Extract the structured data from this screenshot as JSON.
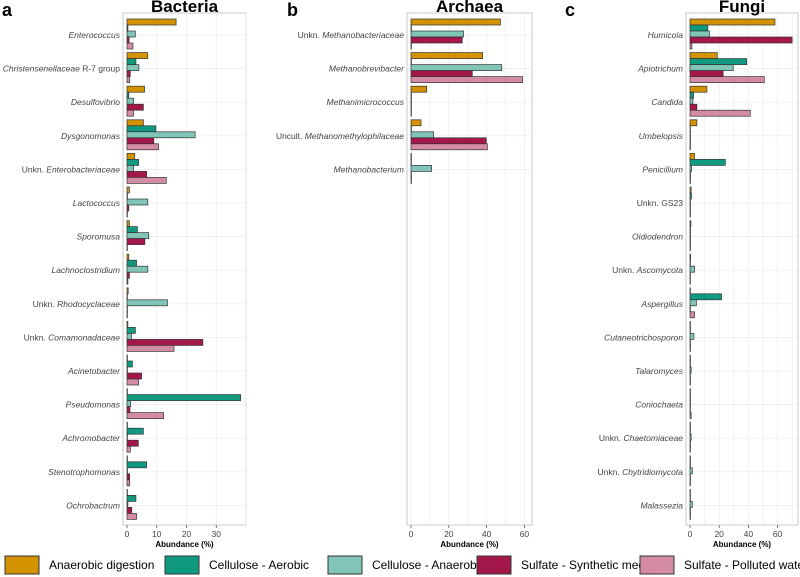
{
  "chart_data": {
    "type": "bar",
    "orientation": "horizontal",
    "legend_position": "bottom",
    "grid": true,
    "series_names": [
      "Anaerobic digestion",
      "Cellulose - Aerobic",
      "Cellulose - Anaerobic",
      "Sulfate - Synthetic medium",
      "Sulfate - Polluted water"
    ],
    "series_colors": [
      "#D39200",
      "#0F9A80",
      "#80C5B7",
      "#A4174A",
      "#D48CA4"
    ],
    "panels": [
      {
        "letter": "a",
        "title": "Bacteria",
        "xlabel": "Abundance (%)",
        "xlim": [
          0,
          40
        ],
        "ticks": [
          "0",
          "10",
          "20",
          "30"
        ],
        "categories": [
          {
            "italic": "Enterococcus",
            "plain": "",
            "suffix": ""
          },
          {
            "italic": "Christensenellaceae",
            "plain": "",
            "suffix": " R-7 group"
          },
          {
            "italic": "Desulfovibrio",
            "plain": "",
            "suffix": ""
          },
          {
            "italic": "Dysgonomonas",
            "plain": "",
            "suffix": ""
          },
          {
            "italic": "Enterobacteriaceae",
            "plain": "Unkn. ",
            "suffix": ""
          },
          {
            "italic": "Lactococcus",
            "plain": "",
            "suffix": ""
          },
          {
            "italic": "Sporomusa",
            "plain": "",
            "suffix": ""
          },
          {
            "italic": "Lachnoclostridium",
            "plain": "",
            "suffix": ""
          },
          {
            "italic": "Rhodocyclaceae",
            "plain": "Unkn. ",
            "suffix": ""
          },
          {
            "italic": "Comamonadaceae",
            "plain": "Unkn. ",
            "suffix": ""
          },
          {
            "italic": "Acinetobacter",
            "plain": "",
            "suffix": ""
          },
          {
            "italic": "Pseudomonas",
            "plain": "",
            "suffix": ""
          },
          {
            "italic": "Achromobacter",
            "plain": "",
            "suffix": ""
          },
          {
            "italic": "Stenotrophomonas",
            "plain": "",
            "suffix": ""
          },
          {
            "italic": "Ochrobactrum",
            "plain": "",
            "suffix": ""
          }
        ],
        "values": [
          [
            16.5,
            0.3,
            2.8,
            0.7,
            2.0
          ],
          [
            7.0,
            3.0,
            4.0,
            1.1,
            0.9
          ],
          [
            5.9,
            0.6,
            2.2,
            5.5,
            2.2
          ],
          [
            5.5,
            9.7,
            22.9,
            9.0,
            10.6
          ],
          [
            2.6,
            3.9,
            2.2,
            6.6,
            13.2
          ],
          [
            0.8,
            0,
            7.0,
            0.6,
            0.1
          ],
          [
            0.8,
            3.5,
            7.3,
            6.0,
            0.1
          ],
          [
            0.6,
            3.2,
            7.0,
            0.8,
            0.3
          ],
          [
            0.4,
            0,
            13.6,
            0,
            0
          ],
          [
            0.3,
            2.8,
            1.5,
            25.5,
            15.8
          ],
          [
            0,
            1.8,
            0,
            4.9,
            3.9
          ],
          [
            0,
            38.2,
            1.2,
            1.0,
            12.3
          ],
          [
            0,
            5.5,
            0,
            3.8,
            1.1
          ],
          [
            0,
            6.6,
            0,
            0.9,
            0.9
          ],
          [
            0,
            3.0,
            0.3,
            1.6,
            3.2
          ]
        ]
      },
      {
        "letter": "b",
        "title": "Archaea",
        "xlabel": "Abundance (%)",
        "xlim": [
          0,
          64
        ],
        "ticks": [
          "0",
          "20",
          "40",
          "60"
        ],
        "categories": [
          {
            "italic": "Methanobacteriaceae",
            "plain": "Unkn. ",
            "suffix": ""
          },
          {
            "italic": "Methanobrevibacter",
            "plain": "",
            "suffix": ""
          },
          {
            "italic": "Methanimicrococcus",
            "plain": "",
            "suffix": ""
          },
          {
            "italic": "Methanomethylophilaceae",
            "plain": "Uncult. ",
            "suffix": ""
          },
          {
            "italic": "Methanobacterium",
            "plain": "",
            "suffix": ""
          }
        ],
        "values": [
          [
            47.3,
            0,
            27.8,
            27.1,
            0
          ],
          [
            37.9,
            0,
            48.0,
            32.4,
            59.0
          ],
          [
            8.3,
            0,
            0,
            0,
            0
          ],
          [
            5.3,
            0,
            12.0,
            39.8,
            40.4
          ],
          [
            0,
            0,
            10.9,
            0,
            0
          ]
        ]
      },
      {
        "letter": "c",
        "title": "Fungi",
        "xlabel": "Abundance (%)",
        "xlim": [
          0,
          74
        ],
        "ticks": [
          "0",
          "20",
          "40",
          "60"
        ],
        "categories": [
          {
            "italic": "Humicola",
            "plain": "",
            "suffix": ""
          },
          {
            "italic": "Apiotrichum",
            "plain": "",
            "suffix": ""
          },
          {
            "italic": "Candida",
            "plain": "",
            "suffix": ""
          },
          {
            "italic": "Umbelopsis",
            "plain": "",
            "suffix": ""
          },
          {
            "italic": "Penicillium",
            "plain": "",
            "suffix": ""
          },
          {
            "italic": "",
            "plain": "Unkn. GS23",
            "suffix": ""
          },
          {
            "italic": "Oidiodendron",
            "plain": "",
            "suffix": ""
          },
          {
            "italic": "Ascomycota",
            "plain": "Unkn. ",
            "suffix": ""
          },
          {
            "italic": "Aspergillus",
            "plain": "",
            "suffix": ""
          },
          {
            "italic": "Cutaneotrichosporon",
            "plain": "",
            "suffix": ""
          },
          {
            "italic": "Talaromyces",
            "plain": "",
            "suffix": ""
          },
          {
            "italic": "Coniochaeta",
            "plain": "",
            "suffix": ""
          },
          {
            "italic": "Chaetomiaceae",
            "plain": "Unkn. ",
            "suffix": ""
          },
          {
            "italic": "Chytridiomycota",
            "plain": "Unkn. ",
            "suffix": ""
          },
          {
            "italic": "Malassezia",
            "plain": "",
            "suffix": ""
          }
        ],
        "values": [
          [
            58.2,
            12.2,
            13.3,
            70.0,
            1.3
          ],
          [
            18.7,
            38.9,
            29.6,
            22.7,
            50.9
          ],
          [
            11.6,
            2.4,
            2.0,
            4.7,
            41.3
          ],
          [
            4.7,
            0,
            0,
            0,
            0
          ],
          [
            3.1,
            24.2,
            1.1,
            0.3,
            0
          ],
          [
            0.8,
            1.0,
            0.2,
            0.2,
            0.2
          ],
          [
            0.6,
            0.3,
            0.3,
            0.3,
            0
          ],
          [
            0.4,
            0,
            3.1,
            0,
            0
          ],
          [
            0,
            21.6,
            4.4,
            0,
            3.1
          ],
          [
            0,
            0,
            2.7,
            0,
            0
          ],
          [
            0,
            0,
            0.8,
            0,
            0
          ],
          [
            0.2,
            0,
            0,
            0,
            0.8
          ],
          [
            0,
            0,
            0.8,
            0,
            0
          ],
          [
            0,
            0,
            1.6,
            0,
            0
          ],
          [
            0,
            0,
            1.6,
            0,
            0
          ]
        ]
      }
    ]
  }
}
